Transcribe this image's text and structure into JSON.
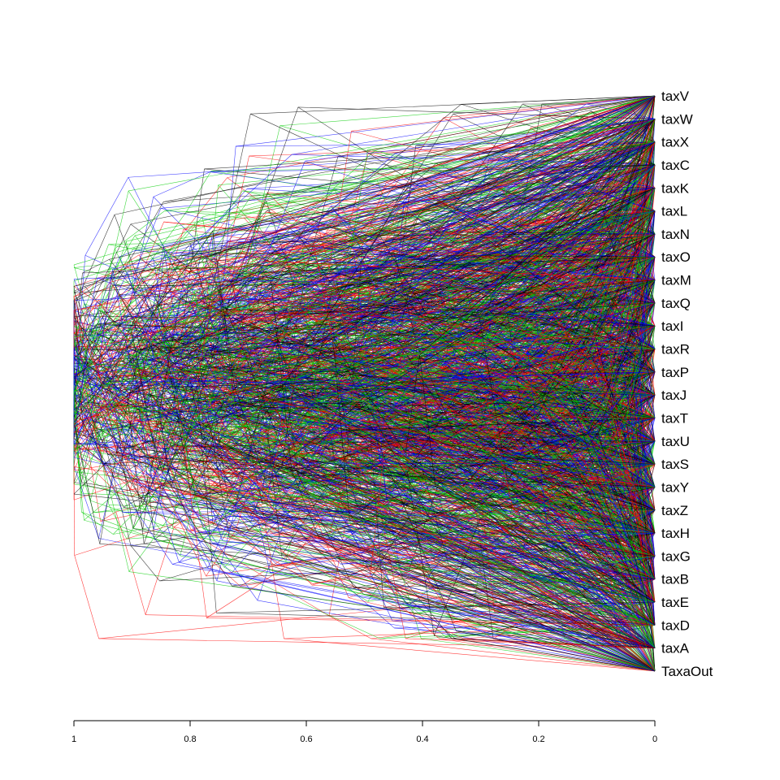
{
  "taxa": [
    "taxV",
    "taxW",
    "taxX",
    "taxC",
    "taxK",
    "taxL",
    "taxN",
    "taxO",
    "taxM",
    "taxQ",
    "taxI",
    "taxR",
    "taxP",
    "taxJ",
    "taxT",
    "taxU",
    "taxS",
    "taxY",
    "taxZ",
    "taxH",
    "taxG",
    "taxB",
    "taxE",
    "taxD",
    "taxA",
    "TaxaOut"
  ],
  "axis": {
    "ticks": [
      1,
      0.8,
      0.6,
      0.4,
      0.2,
      0
    ],
    "tick_labels": [
      "1",
      "0.8",
      "0.6",
      "0.4",
      "0.2",
      "0"
    ]
  },
  "colors": {
    "tree_edges": [
      "#ff0000",
      "#00cc00",
      "#0000ff",
      "#000000"
    ]
  },
  "chart_data": {
    "type": "densitree",
    "xlim": [
      1,
      0
    ],
    "x_axis_ticks": [
      1,
      0.8,
      0.6,
      0.4,
      0.2,
      0
    ],
    "n_trees_approx": 120
  }
}
